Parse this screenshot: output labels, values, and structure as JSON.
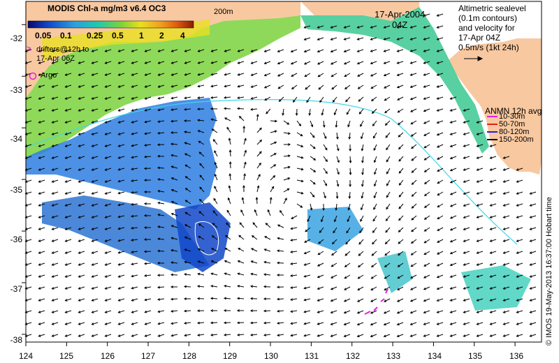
{
  "colorbar": {
    "title": "MODIS Chl-a mg/m3 v6.4 OC3",
    "ticks": [
      "0.05",
      "0.1",
      "0.25",
      "0.5",
      "1",
      "2",
      "4"
    ],
    "colors": [
      "#08086e",
      "#1046c8",
      "#2d9ee0",
      "#20c8b0",
      "#7ad23c",
      "#e8e020",
      "#f0a020",
      "#e05a10",
      "#8c1a08"
    ]
  },
  "date_label": "17-Apr-2004",
  "time_label": "04Z",
  "depth_contour_label": "200m",
  "altimetry_legend": {
    "lines": [
      "Altimetric sealevel",
      "(0.1m contours)",
      "and velocity for",
      "17-Apr 04Z",
      "0.5m/s (1kt 24h)"
    ]
  },
  "drifter_legend": {
    "symbol": ">",
    "lines": [
      "drifters@12h to",
      "17-Apr 06Z"
    ],
    "color": "#e020e0"
  },
  "argo_legend": {
    "label": "Argo",
    "color": "#e020e0"
  },
  "anmn_legend": {
    "title": "ANMN 12h avg",
    "items": [
      {
        "label": "10-30m",
        "color": "#e020e0"
      },
      {
        "label": "50-70m",
        "color": "#e02020"
      },
      {
        "label": "80-120m",
        "color": "#2020e0"
      },
      {
        "label": "150-200m",
        "color": "#000000"
      }
    ]
  },
  "axes": {
    "longitudes": [
      124,
      125,
      126,
      127,
      128,
      129,
      130,
      131,
      132,
      133,
      134,
      135,
      136
    ],
    "latitudes": [
      -32,
      -33,
      -34,
      -35,
      -36,
      -37,
      -38
    ]
  },
  "credit": "© IMOS 19-May-2013 16:37:00 Hobart time",
  "colors": {
    "land": "#f8c8a0",
    "ocean_background": "#ffffff",
    "contour": "#40d8e8"
  }
}
